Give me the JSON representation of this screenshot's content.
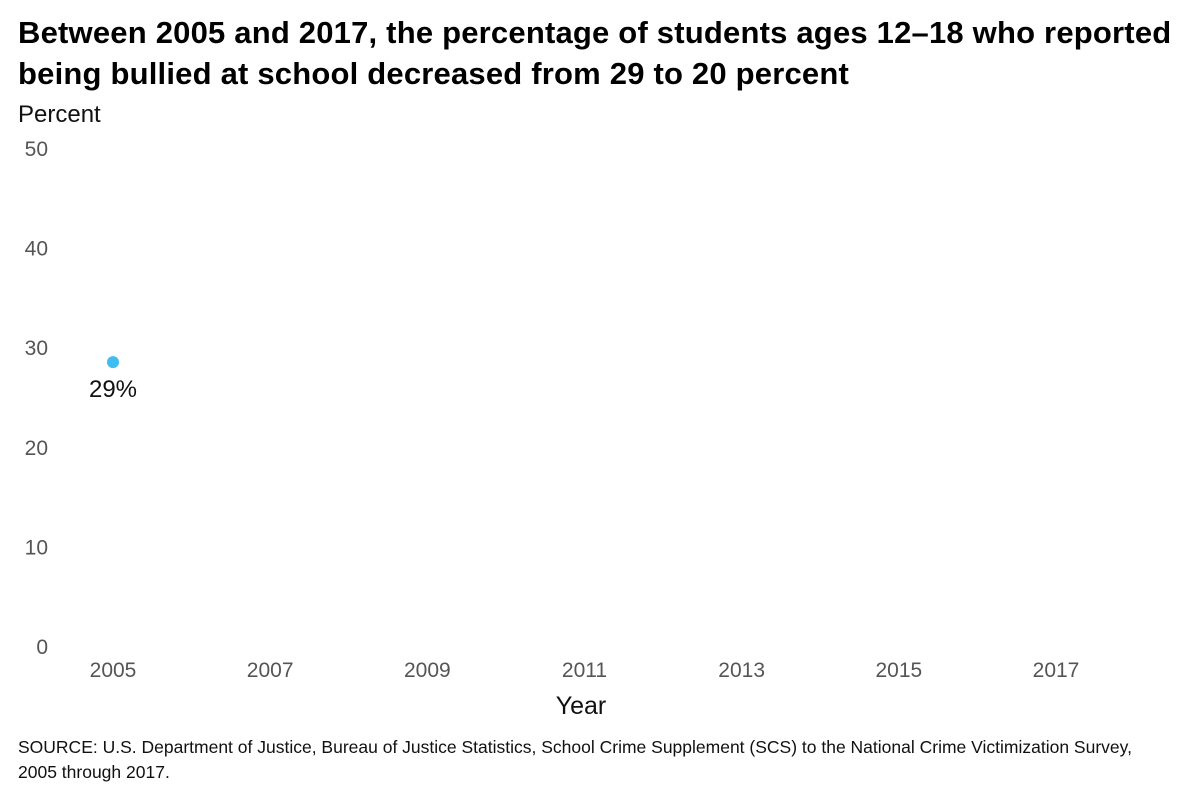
{
  "title": "Between 2005 and 2017, the percentage of students ages 12–18 who reported being bullied at school decreased from 29 to 20 percent",
  "source": "SOURCE: U.S. Department of Justice, Bureau of Justice Statistics, School Crime Supplement (SCS) to the National Crime Victimization Survey, 2005 through 2017.",
  "chart_data": {
    "type": "scatter",
    "title": "Between 2005 and 2017, the percentage of students ages 12–18 who reported being bullied at school decreased from 29 to 20 percent",
    "xlabel": "Year",
    "ylabel": "Percent",
    "x_ticks": [
      "2005",
      "2007",
      "2009",
      "2011",
      "2013",
      "2015",
      "2017"
    ],
    "y_ticks": [
      0,
      10,
      20,
      30,
      40,
      50
    ],
    "xlim": [
      2005,
      2017
    ],
    "ylim": [
      0,
      50
    ],
    "grid": false,
    "points": [
      {
        "x": 2005,
        "y": 28.5,
        "label": "29%"
      }
    ],
    "point_color": "#3fbdf0"
  }
}
